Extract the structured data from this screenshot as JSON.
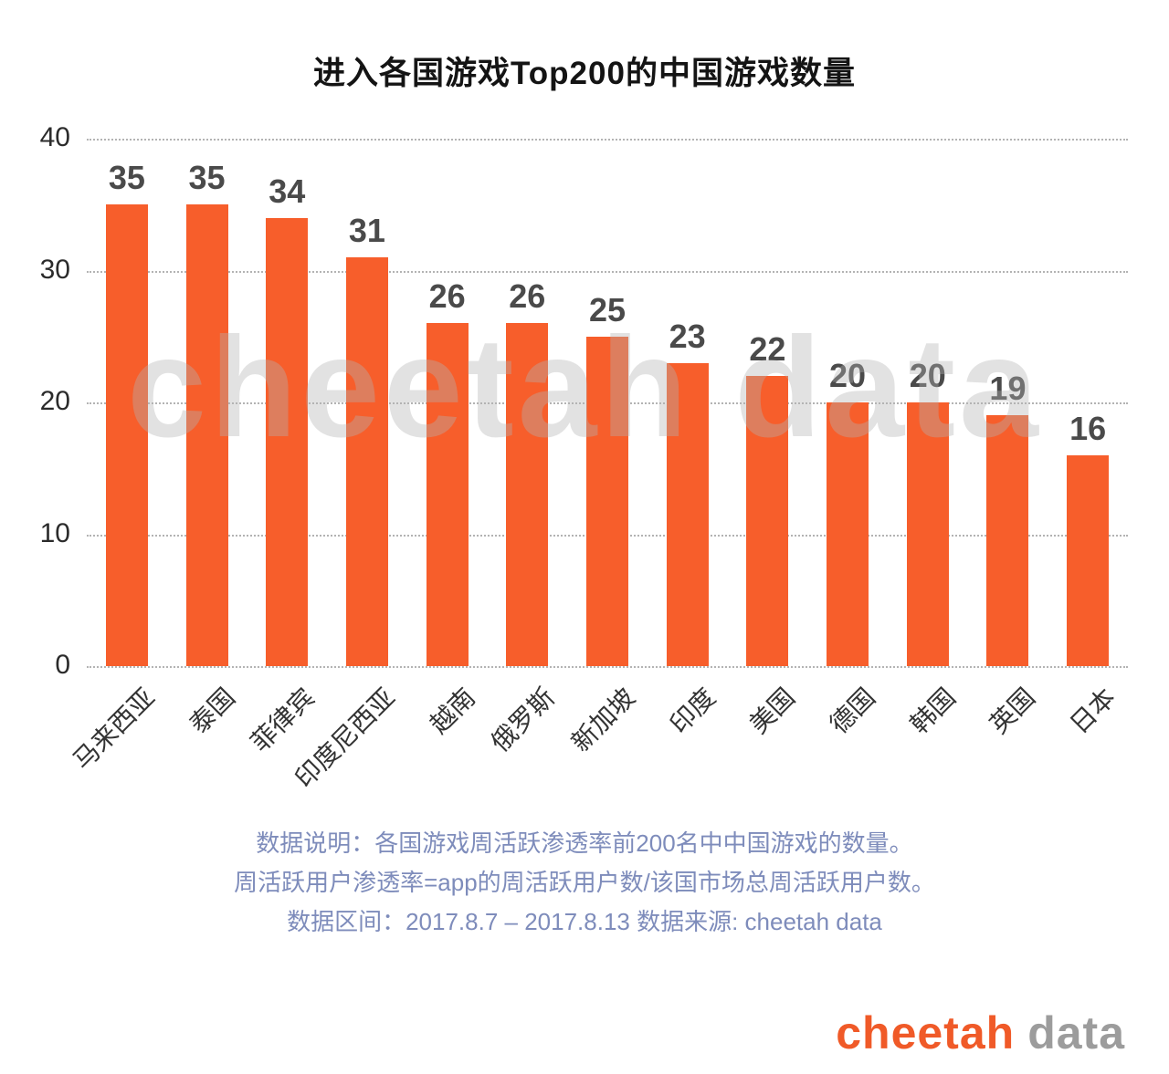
{
  "chart_data": {
    "type": "bar",
    "title": "进入各国游戏Top200的中国游戏数量",
    "categories": [
      "马来西亚",
      "泰国",
      "菲律宾",
      "印度尼西亚",
      "越南",
      "俄罗斯",
      "新加坡",
      "印度",
      "美国",
      "德国",
      "韩国",
      "英国",
      "日本"
    ],
    "values": [
      35,
      35,
      34,
      31,
      26,
      26,
      25,
      23,
      22,
      20,
      20,
      19,
      16
    ],
    "xlabel": "",
    "ylabel": "",
    "ylim": [
      0,
      40
    ],
    "yticks": [
      0,
      10,
      20,
      30,
      40
    ],
    "grid": "horizontal-dotted",
    "legend": "none",
    "bar_color": "#F75E2B",
    "value_label_color": "#4A4A4A"
  },
  "watermark": "cheetah data",
  "notes": {
    "line1": "数据说明：各国游戏周活跃渗透率前200名中中国游戏的数量。",
    "line2": "周活跃用户渗透率=app的周活跃用户数/该国市场总周活跃用户数。",
    "line3": "数据区间：2017.8.7 – 2017.8.13 数据来源: cheetah data"
  },
  "logo": {
    "brand": "cheetah",
    "suffix": "data",
    "brand_color": "#F05A28",
    "suffix_color": "#9C9C9C"
  }
}
